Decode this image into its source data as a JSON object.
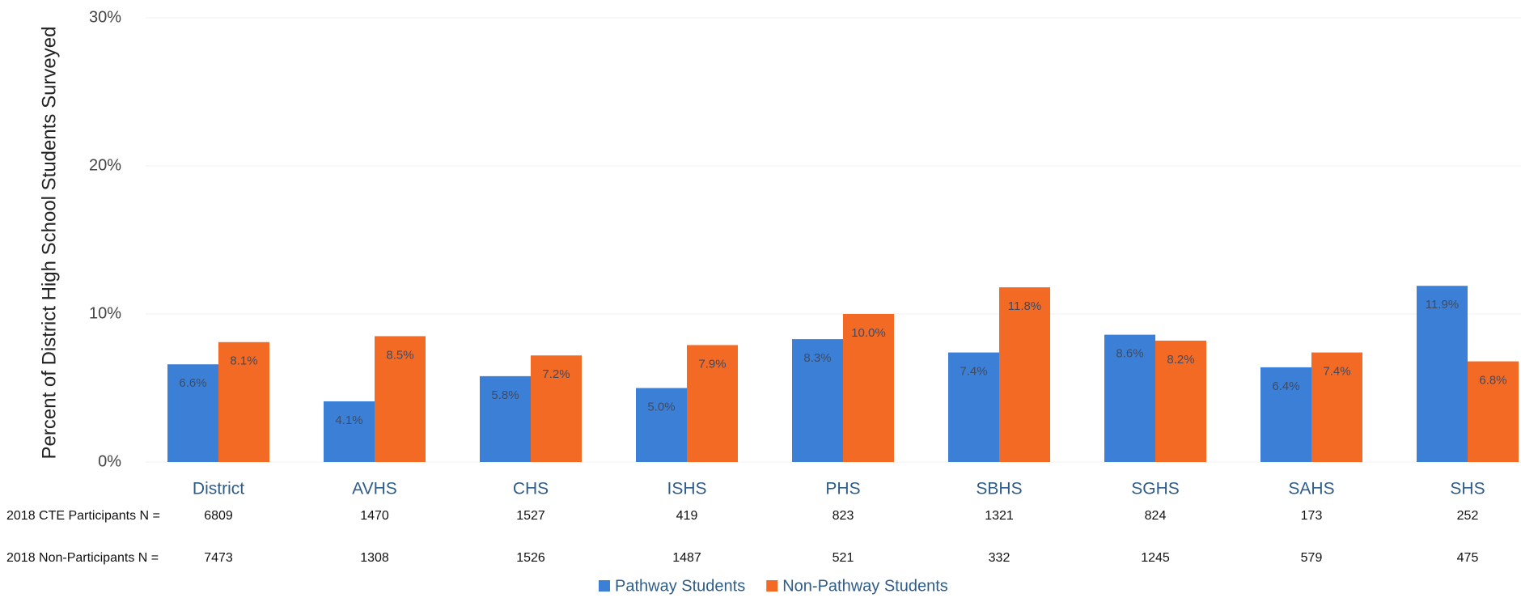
{
  "chart_data": {
    "type": "bar",
    "y_label": "Percent of District High School Students Surveyed",
    "categories": [
      "District",
      "AVHS",
      "CHS",
      "ISHS",
      "PHS",
      "SBHS",
      "SGHS",
      "SAHS",
      "SHS"
    ],
    "series": [
      {
        "name": "Pathway Students",
        "color": "#3b80d6",
        "values": [
          6.6,
          4.1,
          5.8,
          5.0,
          8.3,
          7.4,
          8.6,
          6.4,
          11.9
        ],
        "value_labels": [
          "6.6%",
          "4.1%",
          "5.8%",
          "5.0%",
          "8.3%",
          "7.4%",
          "8.6%",
          "6.4%",
          "11.9%"
        ]
      },
      {
        "name": "Non-Pathway Students",
        "color": "#f26a24",
        "values": [
          8.1,
          8.5,
          7.2,
          7.9,
          10.0,
          11.8,
          8.2,
          7.4,
          6.8
        ],
        "value_labels": [
          "8.1%",
          "8.5%",
          "7.2%",
          "7.9%",
          "10.0%",
          "11.8%",
          "8.2%",
          "7.4%",
          "6.8%"
        ]
      }
    ],
    "ylim": [
      0,
      30
    ],
    "yticks": [
      {
        "value": 0,
        "label": "0%"
      },
      {
        "value": 10,
        "label": "10%"
      },
      {
        "value": 20,
        "label": "20%"
      },
      {
        "value": 30,
        "label": "30%"
      }
    ],
    "grid": true,
    "legend": "bottom",
    "table": {
      "rows": [
        {
          "label": "2018 CTE Participants N =",
          "values": [
            "6809",
            "1470",
            "1527",
            "419",
            "823",
            "1321",
            "824",
            "173",
            "252"
          ]
        },
        {
          "label": "2018 Non-Participants N =",
          "values": [
            "7473",
            "1308",
            "1526",
            "1487",
            "521",
            "332",
            "1245",
            "579",
            "475"
          ]
        }
      ]
    }
  }
}
